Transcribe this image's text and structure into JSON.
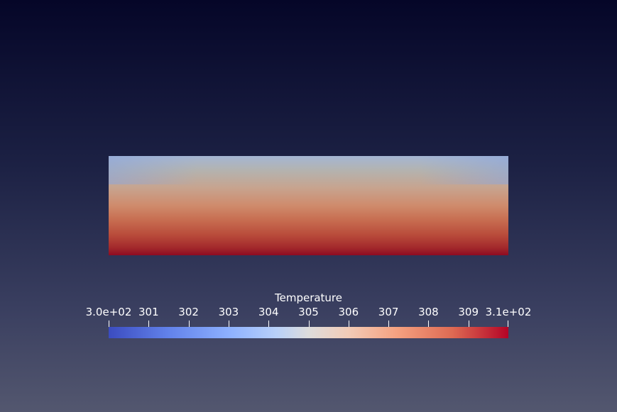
{
  "legend": {
    "title": "Temperature",
    "tick_labels": [
      "3.0e+02",
      "301",
      "302",
      "303",
      "304",
      "305",
      "306",
      "307",
      "308",
      "309",
      "3.1e+02"
    ],
    "min_value": 300,
    "max_value": 310,
    "colormap": "Cool to Warm",
    "colormap_colors": [
      "#3b4cc0",
      "#dddcdc",
      "#b40426"
    ]
  },
  "scene": {
    "background_top_color": "#050628",
    "background_bottom_color": "#53576f",
    "scalar_field": "Temperature"
  }
}
